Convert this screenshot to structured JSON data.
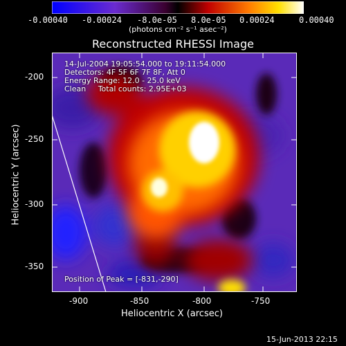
{
  "colorbar": {
    "tick_labels": [
      "-0.00040",
      "-0.00024",
      "-8.0e-05",
      "8.0e-05",
      "0.00024",
      "0.00040"
    ],
    "unit_label": "(photons cm⁻² s⁻¹ asec⁻²)"
  },
  "title": "Reconstructed RHESSI Image",
  "info": {
    "time": "14-Jul-2004 19:05:54.000 to 19:11:54.000",
    "detectors": "Detectors: 4F 5F 6F 7F 8F, Att 0",
    "energy": "Energy Range: 12.0 - 25.0 keV",
    "clean": "Clean     Total counts: 2.95E+03",
    "peak": "Position of Peak = [-831,-290]"
  },
  "axes": {
    "xlabel": "Heliocentric X (arcsec)",
    "ylabel": "Heliocentric Y (arcsec)",
    "xticks": [
      "-900",
      "-850",
      "-800",
      "-750"
    ],
    "yticks": [
      "-200",
      "-250",
      "-300",
      "-350"
    ]
  },
  "footer_date": "15-Jun-2013 22:15",
  "colors": {
    "background": "#000000",
    "low": "#0000ff",
    "mid": "#6a2bd0",
    "high_red": "#e00000",
    "orange": "#ff8c00",
    "yellow": "#ffe000",
    "peak_white": "#ffffff"
  }
}
